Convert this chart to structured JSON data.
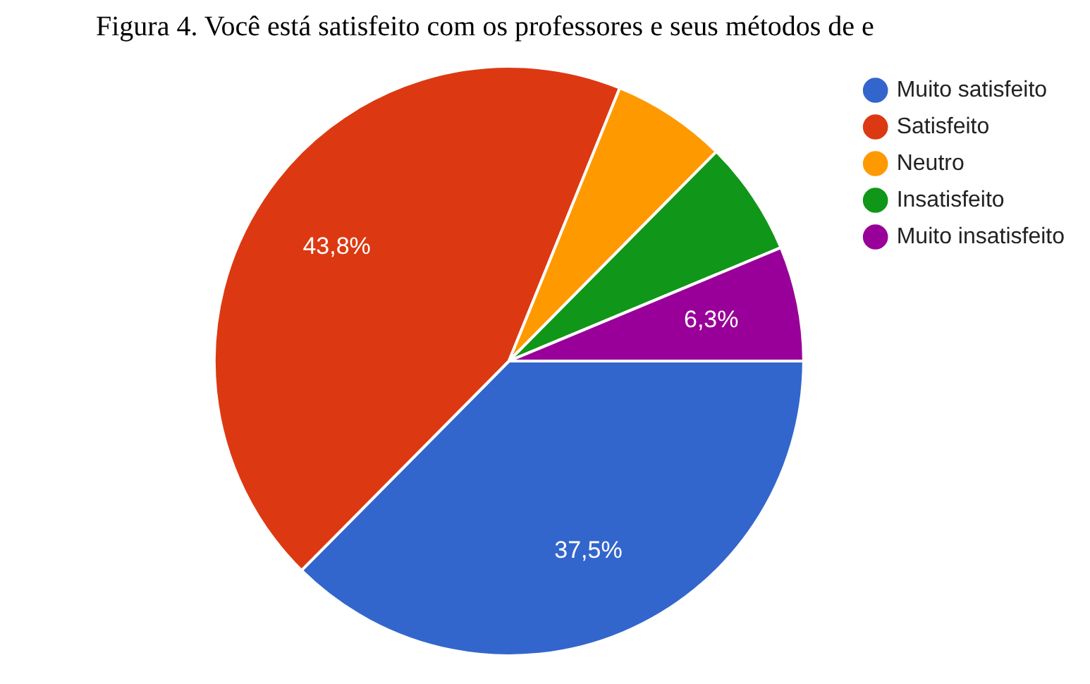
{
  "chart_data": {
    "type": "pie",
    "title": "Figura 4. Você está satisfeito com os professores e seus métodos de e",
    "categories": [
      "Muito satisfeito",
      "Satisfeito",
      "Neutro",
      "Insatisfeito",
      "Muito insatisfeito"
    ],
    "values": [
      37.5,
      43.8,
      6.3,
      6.3,
      6.3
    ],
    "colors": [
      "#3366cc",
      "#dc3912",
      "#ff9900",
      "#109618",
      "#990099"
    ],
    "value_labels": [
      "37,5%",
      "43,8%",
      null,
      null,
      "6,3%"
    ],
    "legend": "top right"
  }
}
